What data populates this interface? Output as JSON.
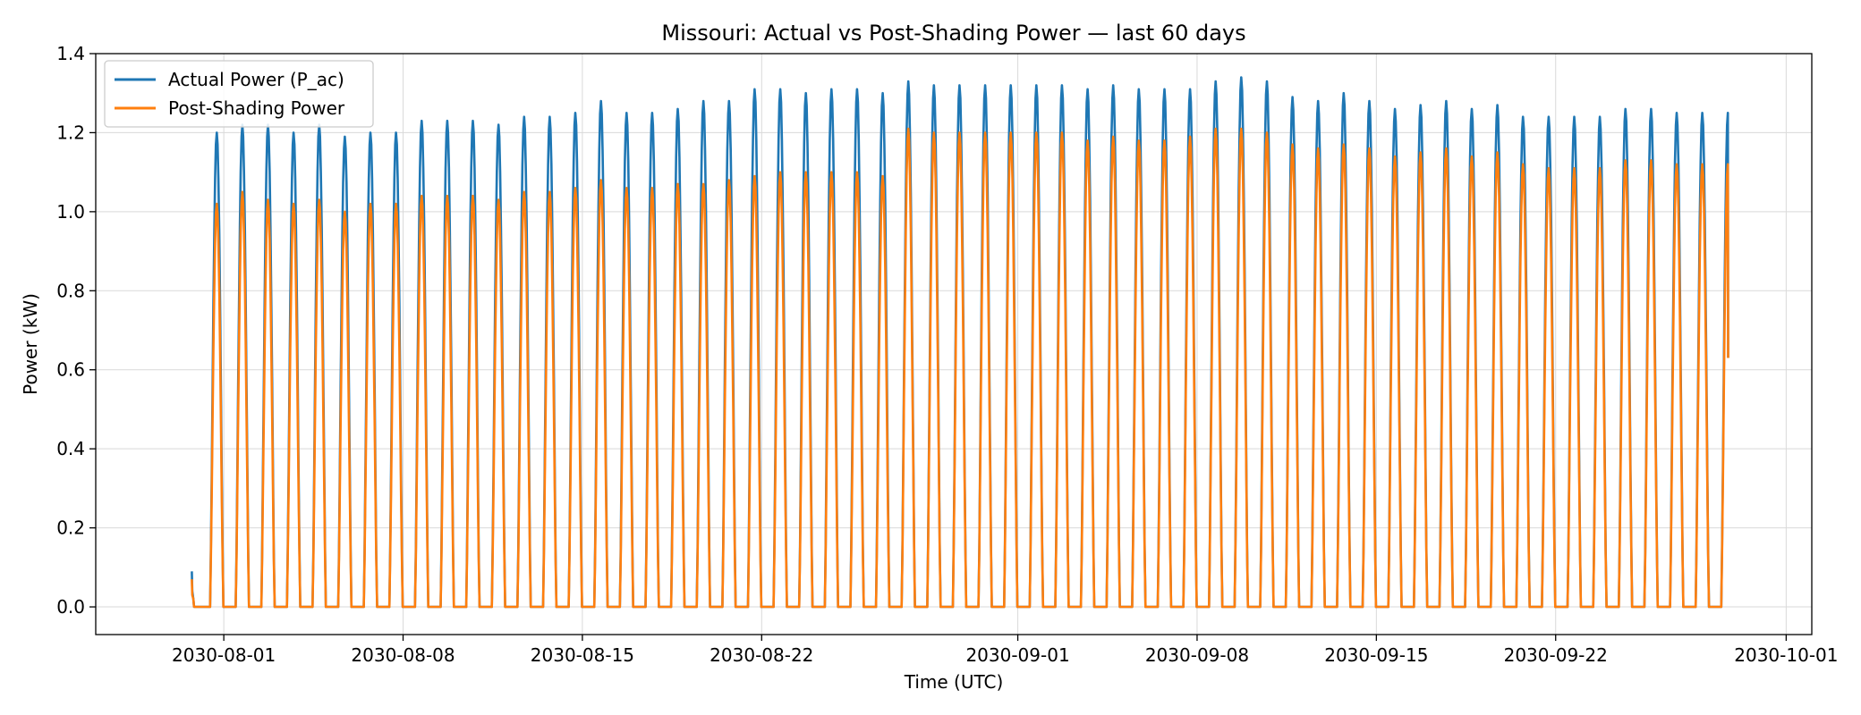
{
  "chart_data": {
    "type": "line",
    "title": "Missouri: Actual vs Post-Shading Power — last 60 days",
    "xlabel": "Time (UTC)",
    "ylabel": "Power (kW)",
    "xlim": [
      "2030-07-27",
      "2030-10-02"
    ],
    "ylim": [
      -0.07,
      1.4
    ],
    "x_ticks": [
      "2030-08-01",
      "2030-08-08",
      "2030-08-15",
      "2030-08-22",
      "2030-09-01",
      "2030-09-08",
      "2030-09-15",
      "2030-09-22",
      "2030-10-01"
    ],
    "y_ticks": [
      0.0,
      0.2,
      0.4,
      0.6,
      0.8,
      1.0,
      1.2,
      1.4
    ],
    "grid": true,
    "legend_position": "top-left",
    "series": [
      {
        "name": "Actual Power (P_ac)",
        "color": "#1f77b4",
        "start": "2030-07-30T18:00",
        "daily_peaks": [
          1.2,
          1.22,
          1.22,
          1.2,
          1.22,
          1.19,
          1.2,
          1.2,
          1.23,
          1.23,
          1.23,
          1.22,
          1.24,
          1.24,
          1.25,
          1.28,
          1.25,
          1.25,
          1.26,
          1.28,
          1.28,
          1.31,
          1.31,
          1.3,
          1.31,
          1.31,
          1.3,
          1.33,
          1.32,
          1.32,
          1.32,
          1.32,
          1.32,
          1.32,
          1.31,
          1.32,
          1.31,
          1.31,
          1.31,
          1.33,
          1.34,
          1.33,
          1.29,
          1.28,
          1.3,
          1.28,
          1.26,
          1.27,
          1.28,
          1.26,
          1.27,
          1.24,
          1.24,
          1.24,
          1.24,
          1.26,
          1.26,
          1.25,
          1.25,
          1.25
        ],
        "end_value": 0.63
      },
      {
        "name": "Post-Shading Power",
        "color": "#ff7f0e",
        "start": "2030-07-30T18:00",
        "daily_peaks": [
          1.02,
          1.05,
          1.03,
          1.02,
          1.03,
          1.0,
          1.02,
          1.02,
          1.04,
          1.04,
          1.04,
          1.03,
          1.05,
          1.05,
          1.06,
          1.08,
          1.06,
          1.06,
          1.07,
          1.07,
          1.08,
          1.09,
          1.1,
          1.1,
          1.1,
          1.1,
          1.09,
          1.21,
          1.2,
          1.2,
          1.2,
          1.2,
          1.2,
          1.2,
          1.18,
          1.19,
          1.18,
          1.18,
          1.19,
          1.21,
          1.21,
          1.2,
          1.17,
          1.16,
          1.17,
          1.16,
          1.14,
          1.15,
          1.16,
          1.14,
          1.15,
          1.12,
          1.11,
          1.11,
          1.11,
          1.13,
          1.13,
          1.12,
          1.12,
          1.12
        ],
        "end_value": 0.63
      }
    ]
  }
}
